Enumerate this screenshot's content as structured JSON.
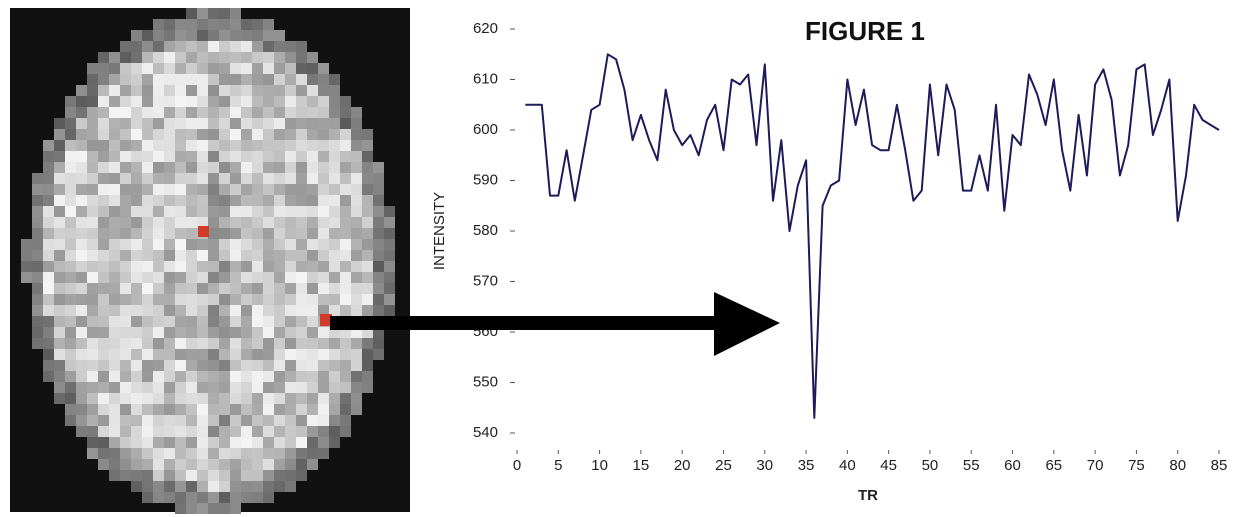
{
  "chart_data": {
    "type": "line",
    "title": "FIGURE 1",
    "x_label": "TR",
    "y_label": "INTENSITY",
    "x": [
      1,
      2,
      3,
      4,
      5,
      6,
      7,
      8,
      9,
      10,
      11,
      12,
      13,
      14,
      15,
      16,
      17,
      18,
      19,
      20,
      21,
      22,
      23,
      24,
      25,
      26,
      27,
      28,
      29,
      30,
      31,
      32,
      33,
      34,
      35,
      36,
      37,
      38,
      39,
      40,
      41,
      42,
      43,
      44,
      45,
      46,
      47,
      48,
      49,
      50,
      51,
      52,
      53,
      54,
      55,
      56,
      57,
      58,
      59,
      60,
      61,
      62,
      63,
      64,
      65,
      66,
      67,
      68,
      69,
      70,
      71,
      72,
      73,
      74,
      75,
      76,
      77,
      78,
      79,
      80,
      81,
      82,
      83,
      84,
      85
    ],
    "series": [
      {
        "name": "INTENSITY",
        "color": "#1c1c5c",
        "values": [
          605,
          605,
          605,
          587,
          587,
          596,
          586,
          595,
          604,
          605,
          615,
          614,
          608,
          598,
          603,
          598,
          594,
          608,
          600,
          597,
          599,
          595,
          602,
          605,
          596,
          610,
          609,
          611,
          597,
          613,
          586,
          598,
          580,
          589,
          594,
          543,
          585,
          589,
          590,
          610,
          601,
          608,
          597,
          596,
          596,
          605,
          596,
          586,
          588,
          609,
          595,
          609,
          604,
          588,
          588,
          595,
          588,
          605,
          584,
          599,
          597,
          611,
          607,
          601,
          610,
          596,
          588,
          603,
          591,
          609,
          612,
          606,
          591,
          597,
          612,
          613,
          599,
          604,
          610,
          582,
          591,
          605,
          602,
          601,
          600
        ]
      }
    ],
    "xlim": [
      0,
      85
    ],
    "ylim": [
      540,
      620
    ],
    "xticks": [
      0,
      5,
      10,
      15,
      20,
      25,
      30,
      35,
      40,
      45,
      50,
      55,
      60,
      65,
      70,
      75,
      80,
      85
    ],
    "yticks": [
      540,
      550,
      560,
      570,
      580,
      590,
      600,
      610,
      620
    ]
  }
}
